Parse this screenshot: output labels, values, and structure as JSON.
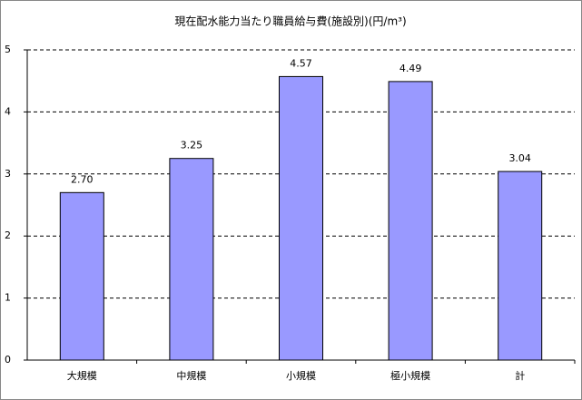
{
  "chart_data": {
    "type": "bar",
    "title": "現在配水能力当たり職員給与費(施設別)(円/m³)",
    "categories": [
      "大規模",
      "中規模",
      "小規模",
      "極小規模",
      "計"
    ],
    "values": [
      2.7,
      3.25,
      4.57,
      4.49,
      3.04
    ],
    "value_labels": [
      "2.70",
      "3.25",
      "4.57",
      "4.49",
      "3.04"
    ],
    "color": "#9999ff",
    "ylim": [
      0,
      5
    ],
    "yticks": [
      0,
      1,
      2,
      3,
      4,
      5
    ],
    "grid": true
  }
}
